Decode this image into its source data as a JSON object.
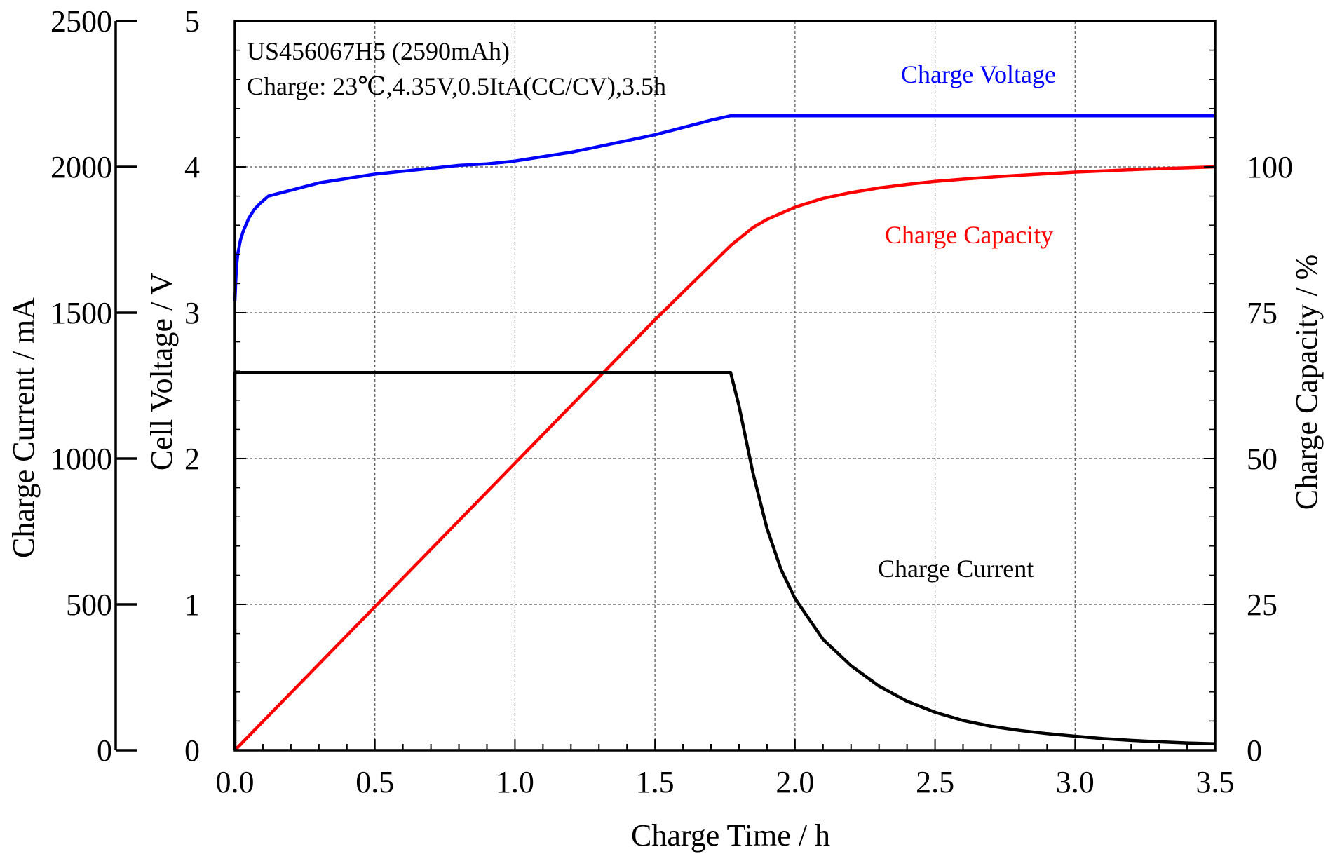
{
  "chart_data": {
    "type": "line",
    "annotations": [
      "US456067H5 (2590mAh)",
      "Charge: 23℃,4.35V,0.5ItA(CC/CV),3.5h"
    ],
    "xlabel": "Charge Time / h",
    "xlim": [
      0,
      3.5
    ],
    "x_ticks": [
      "0.0",
      "0.5",
      "1.0",
      "1.5",
      "2.0",
      "2.5",
      "3.0",
      "3.5"
    ],
    "x_tick_values": [
      0,
      0.5,
      1.0,
      1.5,
      2.0,
      2.5,
      3.0,
      3.5
    ],
    "grid": true,
    "axes": {
      "current": {
        "label": "Charge Current / mA",
        "range": [
          0,
          2500
        ],
        "ticks": [
          "0",
          "500",
          "1000",
          "1500",
          "2000",
          "2500"
        ],
        "tick_values": [
          0,
          500,
          1000,
          1500,
          2000,
          2500
        ]
      },
      "voltage": {
        "label": "Cell Voltage / V",
        "range": [
          0,
          5
        ],
        "ticks": [
          "0",
          "1",
          "2",
          "3",
          "4",
          "5"
        ],
        "tick_values": [
          0,
          1,
          2,
          3,
          4,
          5
        ]
      },
      "capacity": {
        "label": "Charge Capacity / %",
        "range": [
          0,
          125
        ],
        "ticks": [
          "0",
          "25",
          "50",
          "75",
          "100"
        ],
        "tick_values": [
          0,
          25,
          50,
          75,
          100
        ]
      }
    },
    "series": [
      {
        "name": "Charge Voltage",
        "axis": "voltage",
        "color": "#0000ff",
        "x": [
          0,
          0.005,
          0.01,
          0.02,
          0.03,
          0.05,
          0.07,
          0.09,
          0.12,
          0.2,
          0.3,
          0.4,
          0.5,
          0.6,
          0.7,
          0.8,
          0.9,
          1.0,
          1.1,
          1.2,
          1.3,
          1.4,
          1.5,
          1.6,
          1.7,
          1.77,
          2.0,
          2.5,
          3.0,
          3.5
        ],
        "values": [
          3.08,
          3.3,
          3.4,
          3.5,
          3.56,
          3.65,
          3.71,
          3.75,
          3.8,
          3.84,
          3.89,
          3.92,
          3.95,
          3.97,
          3.99,
          4.01,
          4.02,
          4.04,
          4.07,
          4.1,
          4.14,
          4.18,
          4.22,
          4.27,
          4.32,
          4.35,
          4.35,
          4.35,
          4.35,
          4.35
        ]
      },
      {
        "name": "Charge Capacity",
        "axis": "capacity",
        "color": "#ff0000",
        "x": [
          0,
          0.5,
          1.0,
          1.5,
          1.77,
          1.85,
          1.9,
          2.0,
          2.1,
          2.2,
          2.3,
          2.4,
          2.5,
          2.6,
          2.75,
          3.0,
          3.25,
          3.5
        ],
        "values": [
          0,
          24.6,
          49.2,
          73.8,
          86.5,
          89.6,
          91.0,
          93.1,
          94.6,
          95.6,
          96.4,
          97.0,
          97.5,
          97.9,
          98.4,
          99.1,
          99.6,
          100
        ]
      },
      {
        "name": "Charge Current",
        "axis": "current",
        "color": "#000000",
        "x": [
          0,
          0,
          1.77,
          1.8,
          1.85,
          1.9,
          1.95,
          2.0,
          2.1,
          2.2,
          2.3,
          2.4,
          2.5,
          2.6,
          2.7,
          2.8,
          2.9,
          3.0,
          3.1,
          3.2,
          3.3,
          3.4,
          3.5
        ],
        "values": [
          0,
          1295,
          1295,
          1180,
          950,
          760,
          620,
          520,
          380,
          290,
          220,
          168,
          130,
          102,
          82,
          68,
          57,
          48,
          40,
          34,
          29,
          25,
          22
        ]
      }
    ]
  }
}
